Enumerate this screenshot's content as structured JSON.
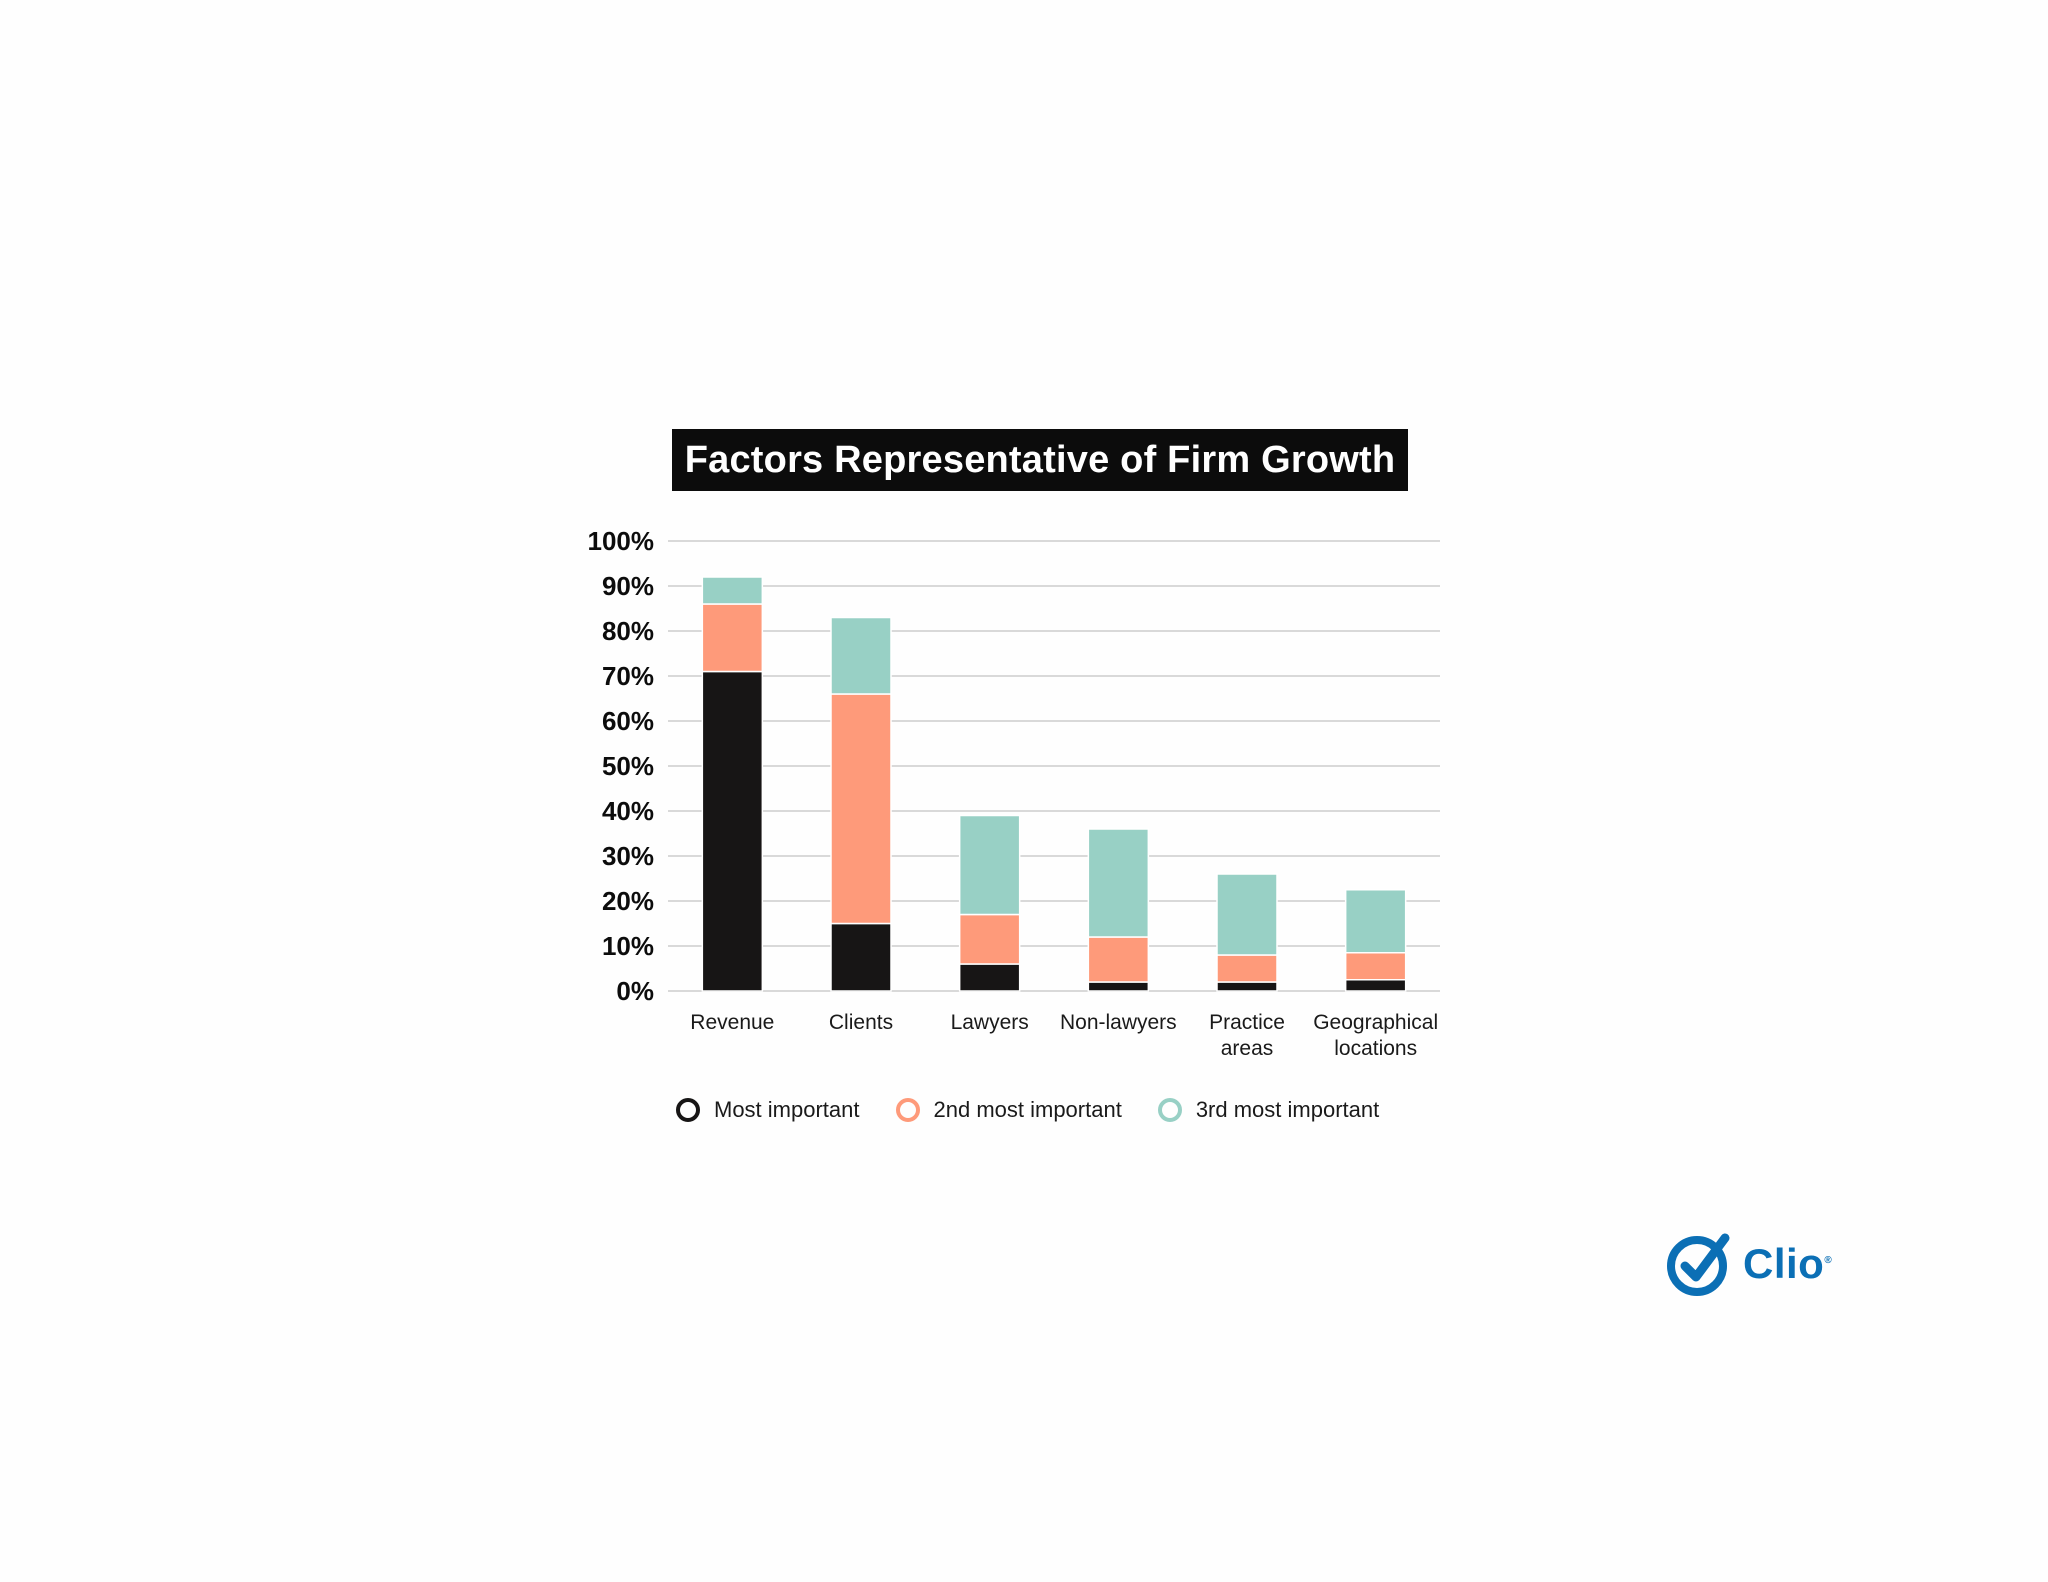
{
  "chart_data": {
    "type": "bar",
    "stacked": true,
    "title": "Factors Representative of Firm Growth",
    "categories": [
      [
        "Revenue"
      ],
      [
        "Clients"
      ],
      [
        "Lawyers"
      ],
      [
        "Non-lawyers"
      ],
      [
        "Practice",
        "areas"
      ],
      [
        "Geographical",
        "locations"
      ]
    ],
    "series": [
      {
        "name": "Most important",
        "color": "#171515",
        "values": [
          71,
          15,
          6,
          2,
          2,
          2.5
        ]
      },
      {
        "name": "2nd most important",
        "color": "#fe9a7a",
        "values": [
          15,
          51,
          11,
          10,
          6,
          6
        ]
      },
      {
        "name": "3rd most important",
        "color": "#98d0c5",
        "values": [
          6,
          17,
          22,
          24,
          18,
          14
        ]
      }
    ],
    "ylim": [
      0,
      100
    ],
    "yticks": [
      "0%",
      "10%",
      "20%",
      "30%",
      "40%",
      "50%",
      "60%",
      "70%",
      "80%",
      "90%",
      "100%"
    ],
    "grid": true,
    "legend_position": "bottom"
  },
  "logo": {
    "text": "Clio",
    "mark": "reg",
    "icon": "check-circle-icon",
    "color": "#0b6fb5"
  }
}
